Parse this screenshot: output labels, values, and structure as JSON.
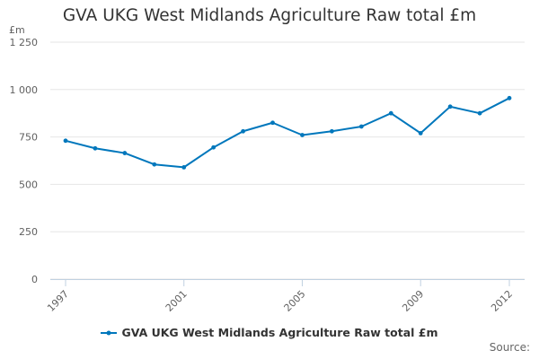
{
  "chart_data": {
    "type": "line",
    "title": "GVA UKG West Midlands Agriculture Raw total £m",
    "y_unit": "£m",
    "x": [
      "1997",
      "1998",
      "1999",
      "2000",
      "2001",
      "2002",
      "2003",
      "2004",
      "2005",
      "2006",
      "2007",
      "2008",
      "2009",
      "2010",
      "2011",
      "2012"
    ],
    "x_tick_labels": [
      "1997",
      "2001",
      "2005",
      "2009",
      "2012"
    ],
    "y_tick_labels": [
      "0",
      "250",
      "500",
      "750",
      "1 000",
      "1 250"
    ],
    "ylim": [
      0,
      1250
    ],
    "y_ticks": [
      0,
      250,
      500,
      750,
      1000,
      1250
    ],
    "grid": true,
    "legend_position": "bottom",
    "series": [
      {
        "name": "GVA UKG West Midlands Agriculture Raw total £m",
        "color": "#0077bc",
        "values": [
          730,
          690,
          665,
          605,
          590,
          695,
          780,
          825,
          760,
          780,
          805,
          875,
          770,
          910,
          875,
          955
        ]
      }
    ]
  },
  "source_label": "Source:"
}
